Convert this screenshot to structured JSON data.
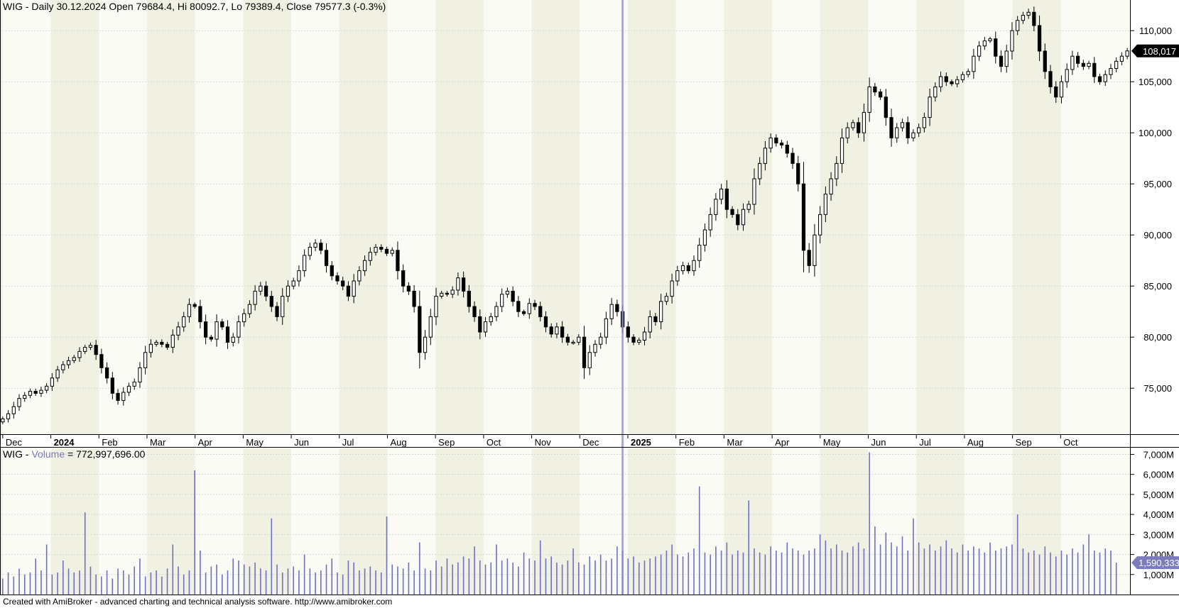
{
  "header": {
    "price_title": "WIG - Daily 30.12.2024 Open 79684.4, Hi 80092.7, Lo 79389.4, Close 79577.3 (-0.3%)",
    "volume_prefix": "WIG - ",
    "volume_indicator": "Volume",
    "volume_value": " = 772,997,696.00"
  },
  "footer": {
    "text": "Created with AmiBroker - advanced charting and technical analysis software. http://www.amibroker.com"
  },
  "colors": {
    "band_light": "#fbfbf6",
    "band_dark": "#f1f1e3",
    "candle": "#000000",
    "volume_bar": "#7070c0",
    "cursor_line": "#9090e8",
    "grid": "#d8d8d8",
    "volume_badge": "#7b7bbd"
  },
  "chart_data": [
    {
      "type": "candlestick",
      "name": "WIG",
      "y_ticks": [
        "75,000",
        "80,000",
        "85,000",
        "90,000",
        "95,000",
        "100,000",
        "105,000",
        "110,000"
      ],
      "y_tick_values": [
        75000,
        80000,
        85000,
        90000,
        95000,
        100000,
        105000,
        110000
      ],
      "ylim": [
        70500,
        113000
      ],
      "last_value_label": "108,017",
      "last_value": 108017,
      "x_labels": [
        {
          "text": "Dec",
          "bold": false
        },
        {
          "text": "2024",
          "bold": true
        },
        {
          "text": "Feb",
          "bold": false
        },
        {
          "text": "Mar",
          "bold": false
        },
        {
          "text": "Apr",
          "bold": false
        },
        {
          "text": "May",
          "bold": false
        },
        {
          "text": "Jun",
          "bold": false
        },
        {
          "text": "Jul",
          "bold": false
        },
        {
          "text": "Aug",
          "bold": false
        },
        {
          "text": "Sep",
          "bold": false
        },
        {
          "text": "Oct",
          "bold": false
        },
        {
          "text": "Nov",
          "bold": false
        },
        {
          "text": "Dec",
          "bold": false
        },
        {
          "text": "2025",
          "bold": true
        },
        {
          "text": "Feb",
          "bold": false
        },
        {
          "text": "Mar",
          "bold": false
        },
        {
          "text": "Apr",
          "bold": false
        },
        {
          "text": "May",
          "bold": false
        },
        {
          "text": "Jun",
          "bold": false
        },
        {
          "text": "Jul",
          "bold": false
        },
        {
          "text": "Aug",
          "bold": false
        },
        {
          "text": "Sep",
          "bold": false
        },
        {
          "text": "Oct",
          "bold": false
        }
      ],
      "cursor_date": "30.12.2024",
      "closes": [
        72000,
        72500,
        73200,
        74000,
        74300,
        74700,
        74500,
        74800,
        75200,
        76000,
        76800,
        77300,
        77700,
        78000,
        78600,
        79000,
        79200,
        78300,
        77000,
        76000,
        74500,
        73800,
        74600,
        75200,
        75600,
        77000,
        78500,
        79300,
        79500,
        79300,
        79000,
        80200,
        81000,
        82000,
        83200,
        83000,
        81500,
        80000,
        79800,
        81500,
        81000,
        79500,
        80000,
        81500,
        82300,
        83200,
        84500,
        85000,
        84000,
        83000,
        82000,
        84000,
        85000,
        85500,
        86500,
        88000,
        88800,
        89200,
        88500,
        87000,
        86000,
        85500,
        85000,
        84000,
        85500,
        86500,
        87500,
        88300,
        88800,
        88600,
        88200,
        88500,
        86500,
        85000,
        84500,
        83000,
        78500,
        80000,
        82000,
        84000,
        84300,
        84200,
        84600,
        85800,
        84500,
        83000,
        82000,
        80500,
        81500,
        82000,
        83000,
        84200,
        84500,
        83500,
        82500,
        82300,
        83300,
        83000,
        82000,
        81000,
        80300,
        81000,
        80000,
        79500,
        79500,
        80000,
        77000,
        78500,
        79300,
        80000,
        81800,
        83200,
        82500,
        81000,
        80000,
        79500,
        79700,
        80500,
        82000,
        81500,
        83500,
        84000,
        85500,
        86500,
        87000,
        86500,
        87500,
        89000,
        90500,
        92000,
        93500,
        94500,
        92500,
        92000,
        91000,
        92500,
        93000,
        95500,
        97000,
        98500,
        99500,
        99000,
        98800,
        98000,
        97000,
        95000,
        88500,
        87000,
        90000,
        92000,
        94000,
        95500,
        97000,
        99500,
        100500,
        101000,
        100000,
        102000,
        104500,
        104000,
        103500,
        101500,
        99500,
        100500,
        101000,
        99500,
        100000,
        100500,
        101500,
        103500,
        104500,
        105500,
        105000,
        104800,
        105200,
        105700,
        106000,
        107500,
        108500,
        109000,
        109200,
        107500,
        106500,
        108000,
        110000,
        111000,
        111500,
        111800,
        110500,
        108000,
        106000,
        104500,
        103500,
        105000,
        106200,
        107500,
        106800,
        106500,
        106800,
        105500,
        105000,
        105700,
        106300,
        107000,
        107500,
        108017
      ],
      "volume_ticks": [
        "1,000M",
        "2,000M",
        "3,000M",
        "4,000M",
        "5,000M",
        "6,000M",
        "7,000M"
      ],
      "volume_tick_values": [
        1000,
        2000,
        3000,
        4000,
        5000,
        6000,
        7000
      ],
      "volume_ylim": [
        0,
        7300
      ],
      "volume_last_label": "1,590,333",
      "volume_last_value": 1590,
      "volumes_millions": [
        800,
        1100,
        900,
        1300,
        1000,
        1100,
        1800,
        1200,
        2500,
        1000,
        1100,
        1700,
        1300,
        1100,
        1200,
        4100,
        1400,
        1000,
        900,
        1200,
        800,
        1300,
        1200,
        1000,
        1400,
        1800,
        900,
        1100,
        1200,
        900,
        1300,
        2500,
        1400,
        1000,
        1200,
        6200,
        2200,
        1100,
        1400,
        1500,
        1000,
        1200,
        1800,
        1700,
        1500,
        1400,
        1600,
        1300,
        1200,
        3800,
        1500,
        1100,
        1300,
        1400,
        1200,
        2000,
        1300,
        1100,
        1200,
        1500,
        1800,
        1100,
        1000,
        1700,
        1600,
        1200,
        1300,
        1400,
        1200,
        1100,
        3900,
        1500,
        1400,
        1300,
        1600,
        1200,
        2600,
        1300,
        1200,
        1700,
        1400,
        1800,
        1500,
        1600,
        1900,
        1800,
        2400,
        1700,
        1500,
        1600,
        2500,
        1700,
        1800,
        1600,
        1400,
        2100,
        1800,
        1700,
        2700,
        1800,
        1900,
        1600,
        1500,
        1700,
        2300,
        1600,
        1500,
        1900,
        1700,
        2000,
        1700,
        1800,
        2400,
        2200,
        1800,
        1900,
        1600,
        1700,
        1800,
        1900,
        2000,
        2200,
        2500,
        2000,
        1900,
        2100,
        2300,
        5400,
        2100,
        2000,
        2400,
        2200,
        2600,
        2000,
        2200,
        2100,
        4700,
        2300,
        2100,
        2000,
        2400,
        2200,
        2100,
        2600,
        2300,
        2200,
        2000,
        2200,
        2300,
        3000,
        2700,
        2300,
        2500,
        2200,
        2100,
        2400,
        2600,
        2300,
        7100,
        3400,
        2500,
        3100,
        2600,
        2400,
        2900,
        2200,
        3800,
        2600,
        2300,
        2500,
        2200,
        2400,
        2700,
        2300,
        2100,
        2500,
        2200,
        2400,
        2300,
        2100,
        2600,
        2200,
        2300,
        2400,
        2500,
        4000,
        2300,
        2100,
        2200,
        2000,
        2400,
        2100,
        1900,
        2200,
        2000,
        2300,
        2100,
        2500,
        3000,
        2200,
        2100,
        2300,
        2200,
        1590
      ]
    }
  ]
}
